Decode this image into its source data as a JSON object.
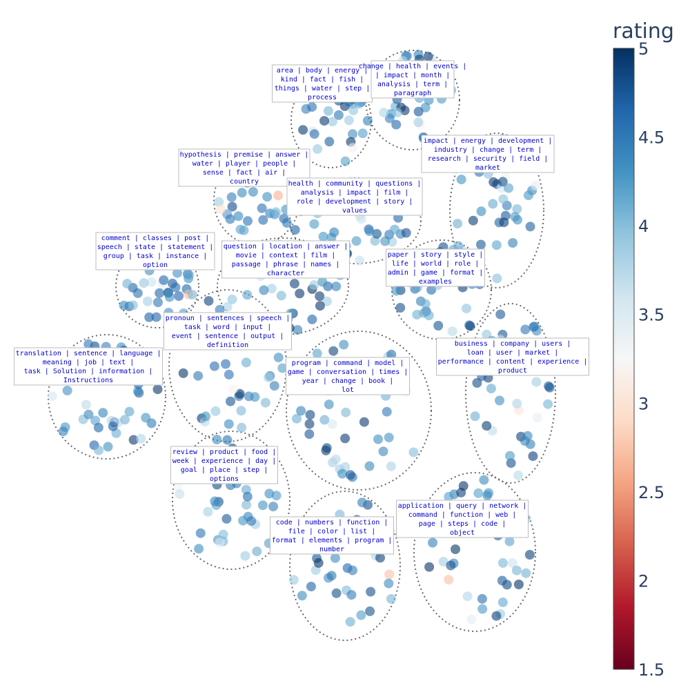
{
  "chart_data": {
    "type": "scatter",
    "title": "",
    "xlabel": "",
    "ylabel": "",
    "colorbar": {
      "title": "rating",
      "range": [
        1.5,
        5
      ],
      "ticks": [
        "5",
        "4.5",
        "4",
        "3.5",
        "3",
        "2.5",
        "2",
        "1.5"
      ],
      "colorscale": [
        "#67001f",
        "#b2182b",
        "#d6604d",
        "#f4a582",
        "#fddbc7",
        "#f7f7f7",
        "#d1e5f0",
        "#92c5de",
        "#4393c3",
        "#2166ac",
        "#053061"
      ]
    },
    "clusters": [
      {
        "lines": [
          "area | body | energy |",
          "kind | fact | fish |",
          "things | water | step |",
          "process"
        ]
      },
      {
        "lines": [
          "change | health | events |",
          "| impact | month |",
          "analysis | term |",
          "paragraph"
        ]
      },
      {
        "lines": [
          "impact | energy | development |",
          "industry | change | term |",
          "research | security | field |",
          "market"
        ]
      },
      {
        "lines": [
          "hypothesis | premise | answer |",
          "water | player | people |",
          "sense | fact | air |",
          "country"
        ]
      },
      {
        "lines": [
          "health | community | questions |",
          "analysis | impact | film |",
          "role | development | story |",
          "values"
        ]
      },
      {
        "lines": [
          "comment | classes | post |",
          "speech | state | statement |",
          "group | task | instance |",
          "option"
        ]
      },
      {
        "lines": [
          "question | location | answer |",
          "movie | context | film |",
          "passage | phrase | names |",
          "character"
        ]
      },
      {
        "lines": [
          "paper | story | style |",
          "life | world | role |",
          "admin | game | format |",
          "examples"
        ]
      },
      {
        "lines": [
          "pronoun | sentences | speech |",
          "task | word | input |",
          "event | sentence | output |",
          "definition"
        ]
      },
      {
        "lines": [
          "translation | sentence | language |",
          "meaning | job | text |",
          "task | Solution | information |",
          "Instructions"
        ]
      },
      {
        "lines": [
          "business | company | users |",
          "loan | user | market |",
          "performance | content | experience |",
          "product"
        ]
      },
      {
        "lines": [
          "program | command | model |",
          "game | conversation | times |",
          "year | change | book |",
          "lot"
        ]
      },
      {
        "lines": [
          "review | product | food |",
          "week | experience | day |",
          "goal | place | step |",
          "options"
        ]
      },
      {
        "lines": [
          "code | numbers | function |",
          "file | color | list |",
          "format | elements | program |",
          "number"
        ]
      },
      {
        "lines": [
          "application | query | network |",
          "command | function | web |",
          "page | steps | code |",
          "object"
        ]
      }
    ],
    "points": []
  }
}
